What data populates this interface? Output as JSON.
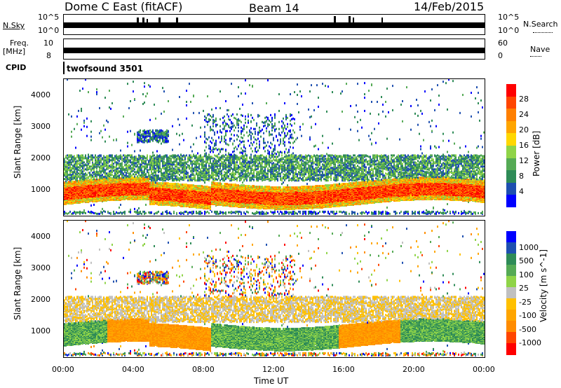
{
  "header": {
    "station": "Dome C East (fitACF)",
    "beam": "Beam 14",
    "date": "14/Feb/2015"
  },
  "top_panels": {
    "nsky_label": "N.Sky",
    "nsky_ticks": [
      "10^5",
      "10^0"
    ],
    "nsearch_label": "N.Search",
    "freq_label": "Freq.",
    "freq_unit": "[MHz]",
    "freq_ticks": [
      "10",
      "8"
    ],
    "nave_label": "Nave",
    "nave_ticks": [
      "60",
      "0"
    ],
    "cpid_label": "CPID",
    "cpid_value": "twofsound 3501"
  },
  "colors": {
    "power": [
      "#0000ff",
      "#1e4fb0",
      "#2e8b57",
      "#55aa55",
      "#8fd448",
      "#ffd700",
      "#ffa500",
      "#ff7f00",
      "#ff4500",
      "#ff0000"
    ],
    "velocity": [
      "#ff0000",
      "#ff4500",
      "#ff8c00",
      "#ffa500",
      "#ffc000",
      "#c0c0c0",
      "#8fd448",
      "#55aa55",
      "#2e8b57",
      "#1e4fb0",
      "#0000ff"
    ]
  },
  "chart_data": [
    {
      "type": "heatmap",
      "title": "Power",
      "xlabel": "",
      "ylabel": "Slant Range [km]",
      "ylim": [
        180,
        4500
      ],
      "y_ticks": [
        1000,
        2000,
        3000,
        4000
      ],
      "colorbar_label": "Power [dB]",
      "colorbar_ticks": [
        4,
        8,
        12,
        16,
        20,
        24,
        28
      ],
      "colorbar_range": [
        0,
        32
      ]
    },
    {
      "type": "heatmap",
      "title": "Velocity",
      "xlabel": "Time UT",
      "ylabel": "Slant Range [km]",
      "ylim": [
        180,
        4500
      ],
      "y_ticks": [
        1000,
        2000,
        3000,
        4000
      ],
      "x_ticks": [
        "00:00",
        "04:00",
        "08:00",
        "12:00",
        "16:00",
        "20:00",
        "00:00"
      ],
      "colorbar_label": "Velocity [m s^-1]",
      "colorbar_ticks": [
        "1000",
        "500",
        "100",
        "25",
        "-25",
        "-100",
        "-500",
        "-1000"
      ]
    }
  ]
}
